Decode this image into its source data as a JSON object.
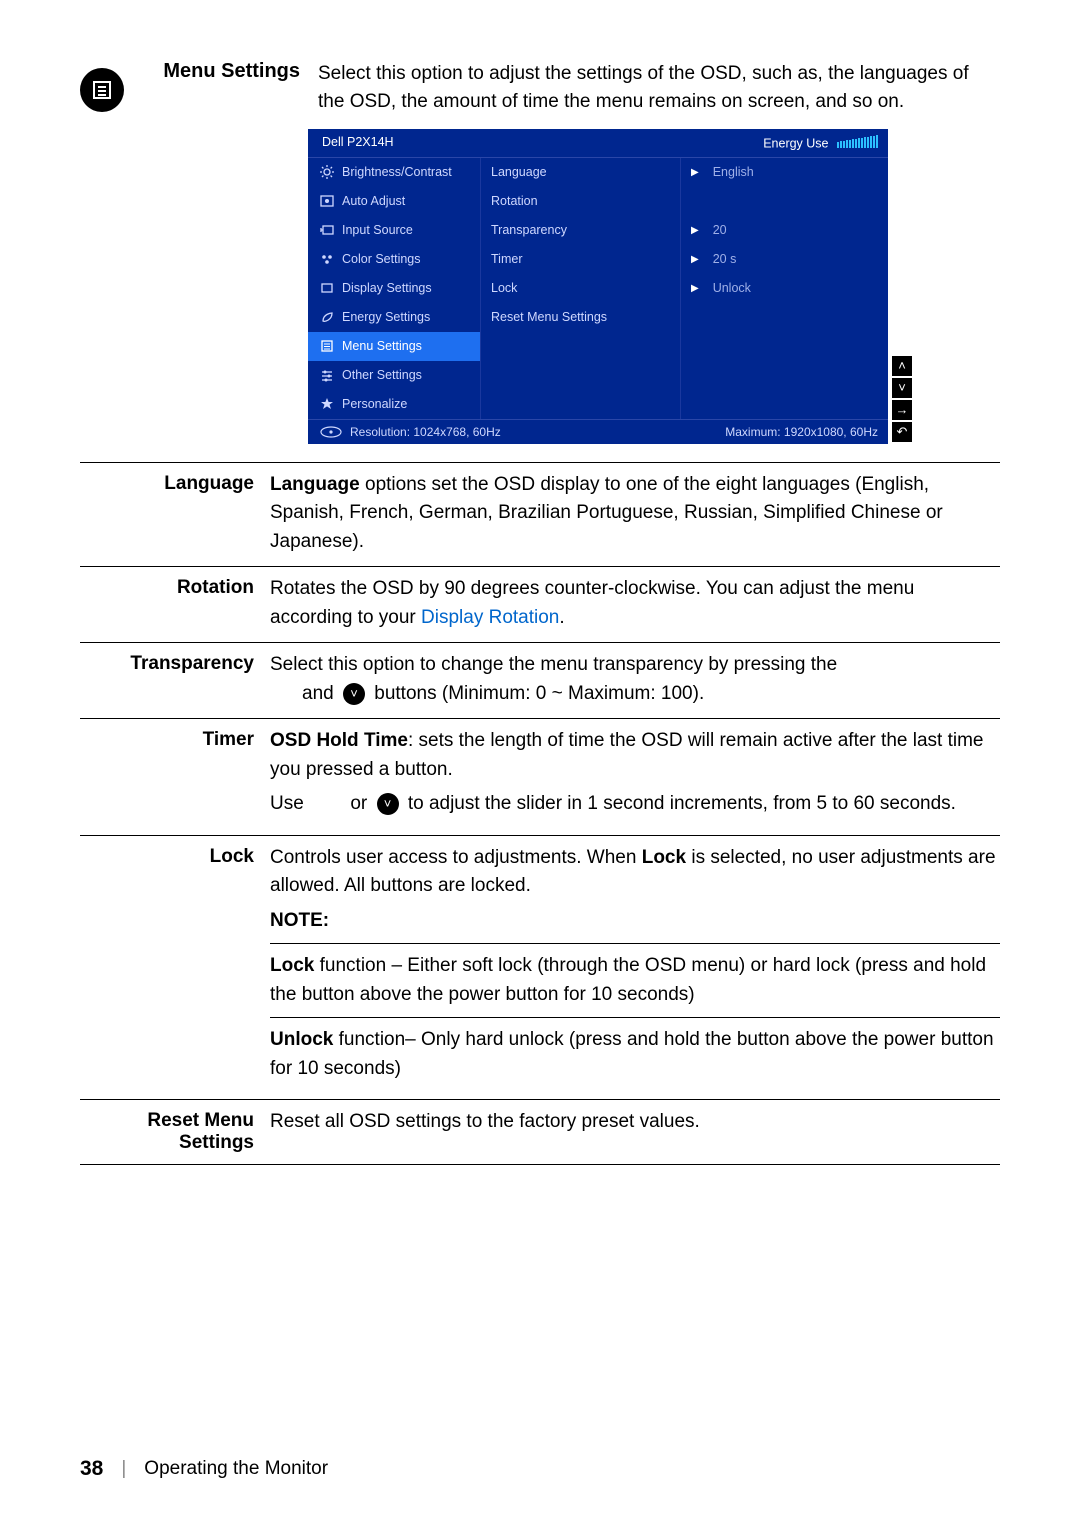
{
  "section": {
    "title": "Menu Settings",
    "desc": "Select this option to adjust the settings of the OSD, such as, the languages of the OSD, the amount of time the menu remains on screen, and so on."
  },
  "osd": {
    "model": "Dell P2X14H",
    "energy_label": "Energy Use",
    "left_items": [
      {
        "label": "Brightness/Contrast",
        "icon": "sun"
      },
      {
        "label": "Auto Adjust",
        "icon": "target"
      },
      {
        "label": "Input Source",
        "icon": "input"
      },
      {
        "label": "Color Settings",
        "icon": "dots"
      },
      {
        "label": "Display Settings",
        "icon": "rect"
      },
      {
        "label": "Energy Settings",
        "icon": "leaf"
      },
      {
        "label": "Menu Settings",
        "icon": "menu",
        "selected": true
      },
      {
        "label": "Other Settings",
        "icon": "sliders"
      },
      {
        "label": "Personalize",
        "icon": "star"
      }
    ],
    "mid_items": [
      "Language",
      "Rotation",
      "Transparency",
      "Timer",
      "Lock",
      "Reset Menu Settings"
    ],
    "right_items": [
      {
        "value": "English",
        "caret": true
      },
      {
        "value": ""
      },
      {
        "value": "20",
        "caret": true
      },
      {
        "value": "20 s",
        "caret": true
      },
      {
        "value": "Unlock",
        "caret": true
      },
      {
        "value": ""
      }
    ],
    "footer_res_label": "Resolution: 1024x768, 60Hz",
    "footer_max_label": "Maximum: 1920x1080, 60Hz",
    "bg_color": "#00268f",
    "sel_color": "#1e6ff0"
  },
  "rows": {
    "language": {
      "label": "Language",
      "text_prefix": "Language",
      "text": " options set the OSD display to one of the eight languages (English, Spanish, French, German, Brazilian Portuguese, Russian, Simplified Chinese or Japanese)."
    },
    "rotation": {
      "label": "Rotation",
      "text_pre": "Rotates the OSD by 90 degrees counter-clockwise. You can adjust the menu according to your ",
      "link": "Display Rotation",
      "text_post": "."
    },
    "transparency": {
      "label": "Transparency",
      "line1_pre": "Select this option to change the menu transparency by pressing the",
      "line2_pre": "and",
      "line2_post": "buttons (Minimum: 0 ~ Maximum: 100)."
    },
    "timer": {
      "label": "Timer",
      "p1_bold": "OSD Hold Time",
      "p1_rest": ": sets the length of time the OSD will remain active after the last time you pressed a button.",
      "p2_pre": "Use",
      "p2_or": "or",
      "p2_post": "to adjust the slider in 1 second increments, from 5 to 60 seconds."
    },
    "lock": {
      "label": "Lock",
      "p1_pre": "Controls user access to adjustments. When ",
      "p1_bold": "Lock",
      "p1_post": " is selected, no user adjustments are allowed. All buttons are locked.",
      "note": "NOTE:",
      "p2_bold": "Lock",
      "p2_rest": " function – Either soft lock (through the OSD menu) or hard lock (press and hold the button above the power button for 10 seconds)",
      "p3_bold": "Unlock",
      "p3_rest": " function– Only hard unlock (press and hold the button above the power button for 10 seconds)"
    },
    "reset": {
      "label": "Reset Menu Settings",
      "text": "Reset all OSD settings to the factory preset values."
    }
  },
  "footer": {
    "page": "38",
    "chapter": "Operating the Monitor"
  }
}
